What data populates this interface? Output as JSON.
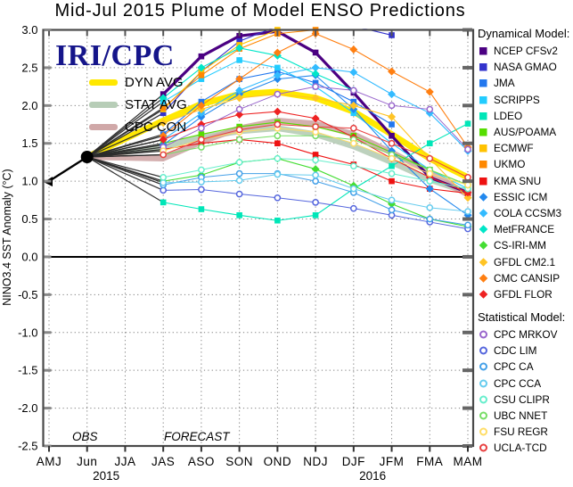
{
  "chart_data": {
    "type": "line",
    "title": "Mid-Jul 2015 Plume of Model ENSO Predictions",
    "ylabel": "NINO3.4 SST Anomaly (°C)",
    "x_categories": [
      "AMJ",
      "Jun",
      "JJA",
      "JAS",
      "ASO",
      "SON",
      "OND",
      "NDJ",
      "DJF",
      "JFM",
      "FMA",
      "MAM"
    ],
    "year_labels": [
      {
        "text": "2015",
        "between": [
          "Jun",
          "JJA"
        ]
      },
      {
        "text": "2016",
        "between": [
          "DJF",
          "JFM"
        ]
      }
    ],
    "ylim": [
      -2.5,
      3.0
    ],
    "ytick_step": 0.5,
    "grid": "dotted",
    "zero_line": true,
    "watermark": "IRI/CPC",
    "obs_label": "OBS",
    "forecast_label": "FORECAST",
    "observations": {
      "name": "OBS",
      "color": "#000000",
      "x": [
        "AMJ",
        "Jun"
      ],
      "values": [
        1.0,
        1.32
      ]
    },
    "forecast_start_category": "JAS",
    "fan_color": "#2a2a2a",
    "averages": [
      {
        "name": "DYN AVG",
        "color": "#FFE800",
        "values": [
          1.8,
          2.02,
          2.15,
          2.18,
          2.1,
          1.92,
          1.62,
          1.3,
          1.05
        ]
      },
      {
        "name": "STAT AVG",
        "color": "#B7CDB7",
        "values": [
          1.45,
          1.58,
          1.66,
          1.7,
          1.62,
          1.46,
          1.25,
          1.02,
          0.85
        ]
      },
      {
        "name": "CPC CON",
        "color": "#D0A8A8",
        "values": [
          1.3,
          1.52,
          1.7,
          1.8,
          1.76,
          1.62,
          1.38,
          1.12,
          0.82
        ]
      }
    ],
    "legend": {
      "dynamical_title": "Dynamical Model:",
      "statistical_title": "Statistical Model:"
    },
    "series": [
      {
        "name": "NCEP CFSv2",
        "group": "dynamical",
        "marker": "square",
        "color": "#4B0082",
        "lw": 3.2,
        "values": [
          2.15,
          2.65,
          2.92,
          2.98,
          2.7,
          2.17,
          1.6,
          1.05,
          0.85
        ]
      },
      {
        "name": "NASA GMAO",
        "group": "dynamical",
        "marker": "square",
        "color": "#3333CC",
        "lw": 1.1,
        "values": [
          1.9,
          2.45,
          2.85,
          3.05,
          3.1,
          3.05,
          2.93,
          null,
          null
        ]
      },
      {
        "name": "JMA",
        "group": "dynamical",
        "marker": "square",
        "color": "#2277EE",
        "lw": 1.1,
        "values": [
          1.62,
          2.05,
          2.35,
          2.45,
          2.3,
          2.05,
          1.75,
          null,
          null
        ]
      },
      {
        "name": "SCRIPPS",
        "group": "dynamical",
        "marker": "square",
        "color": "#22CCFF",
        "lw": 1.1,
        "values": [
          2.05,
          2.35,
          2.6,
          2.5,
          2.25,
          1.9,
          1.5,
          1.15,
          0.9
        ]
      },
      {
        "name": "LDEO",
        "group": "dynamical",
        "marker": "square",
        "color": "#00E6B8",
        "lw": 1.1,
        "values": [
          0.72,
          0.63,
          0.55,
          0.48,
          0.55,
          0.9,
          1.2,
          1.5,
          1.76
        ]
      },
      {
        "name": "AUS/POAMA",
        "group": "dynamical",
        "marker": "square",
        "color": "#55DD00",
        "lw": 1.1,
        "values": [
          1.5,
          1.62,
          1.72,
          1.78,
          1.72,
          1.6,
          1.38,
          1.15,
          0.95
        ]
      },
      {
        "name": "ECMWF",
        "group": "dynamical",
        "marker": "square",
        "color": "#FFC200",
        "lw": 1.1,
        "values": [
          1.95,
          2.45,
          2.8,
          3.0,
          null,
          null,
          null,
          null,
          null
        ]
      },
      {
        "name": "UKMO",
        "group": "dynamical",
        "marker": "square",
        "color": "#FF8800",
        "lw": 1.1,
        "values": [
          1.97,
          2.4,
          2.75,
          2.95,
          3.0,
          null,
          null,
          null,
          null
        ]
      },
      {
        "name": "KMA SNU",
        "group": "dynamical",
        "marker": "square",
        "color": "#EE1111",
        "lw": 1.1,
        "values": [
          1.42,
          1.5,
          1.55,
          1.5,
          1.35,
          1.22,
          1.0,
          0.9,
          0.84
        ]
      },
      {
        "name": "ESSIC ICM",
        "group": "dynamical",
        "marker": "diamond",
        "color": "#2288EE",
        "lw": 1.1,
        "values": [
          1.48,
          1.85,
          2.15,
          2.35,
          2.4,
          1.95,
          1.4,
          0.9,
          0.55
        ]
      },
      {
        "name": "COLA CCSM3",
        "group": "dynamical",
        "marker": "diamond",
        "color": "#33BBFF",
        "lw": 1.1,
        "values": [
          1.55,
          1.9,
          2.2,
          2.4,
          2.5,
          2.44,
          2.15,
          1.9,
          1.4
        ]
      },
      {
        "name": "MetFRANCE",
        "group": "dynamical",
        "marker": "diamond",
        "color": "#00E6C8",
        "lw": 1.1,
        "values": [
          2.1,
          2.5,
          2.76,
          2.66,
          2.42,
          2.2,
          null,
          null,
          null
        ]
      },
      {
        "name": "CS-IRI-MM",
        "group": "dynamical",
        "marker": "diamond",
        "color": "#44DD33",
        "lw": 1.1,
        "values": [
          1.0,
          1.08,
          1.25,
          1.3,
          1.16,
          0.94,
          0.7,
          0.5,
          0.4
        ]
      },
      {
        "name": "GFDL CM2.1",
        "group": "dynamical",
        "marker": "diamond",
        "color": "#FFC425",
        "lw": 1.1,
        "values": [
          1.77,
          1.95,
          2.1,
          2.15,
          2.1,
          2.0,
          1.85,
          1.3,
          0.78
        ]
      },
      {
        "name": "CMC CANSIP",
        "group": "dynamical",
        "marker": "diamond",
        "color": "#FF7F11",
        "lw": 1.1,
        "values": [
          1.6,
          2.0,
          2.35,
          2.7,
          2.95,
          2.74,
          2.45,
          2.18,
          1.45
        ]
      },
      {
        "name": "GFDL FLOR",
        "group": "dynamical",
        "marker": "diamond",
        "color": "#EE2222",
        "lw": 1.1,
        "values": [
          1.55,
          1.75,
          1.88,
          1.92,
          1.83,
          1.58,
          1.3,
          1.05,
          0.85
        ]
      },
      {
        "name": "CPC MRKOV",
        "group": "statistical",
        "marker": "circle",
        "color": "#9966CC",
        "lw": 1,
        "values": [
          1.45,
          1.7,
          1.95,
          2.15,
          2.25,
          2.2,
          2.0,
          1.95,
          1.42
        ]
      },
      {
        "name": "CDC LIM",
        "group": "statistical",
        "marker": "circle",
        "color": "#5566DD",
        "lw": 1,
        "values": [
          0.88,
          0.89,
          0.83,
          0.78,
          0.72,
          0.64,
          0.55,
          0.46,
          0.37
        ]
      },
      {
        "name": "CPC CA",
        "group": "statistical",
        "marker": "circle",
        "color": "#44A0E8",
        "lw": 1,
        "values": [
          0.95,
          1.05,
          1.1,
          1.1,
          1.0,
          0.85,
          0.62,
          0.5,
          0.42
        ]
      },
      {
        "name": "CPC CCA",
        "group": "statistical",
        "marker": "circle",
        "color": "#66CCEE",
        "lw": 1,
        "values": [
          0.98,
          0.99,
          1.01,
          1.09,
          1.08,
          0.9,
          0.75,
          0.65,
          0.6
        ]
      },
      {
        "name": "CSU CLIPR",
        "group": "statistical",
        "marker": "circle",
        "color": "#66EECC",
        "lw": 1,
        "values": [
          1.05,
          1.15,
          1.25,
          1.3,
          1.28,
          1.2,
          1.1,
          1.0,
          0.9
        ]
      },
      {
        "name": "UBC NNET",
        "group": "statistical",
        "marker": "circle",
        "color": "#77DD66",
        "lw": 1,
        "values": [
          1.35,
          1.45,
          1.55,
          1.6,
          1.6,
          1.55,
          1.35,
          1.15,
          0.95
        ]
      },
      {
        "name": "FSU REGR",
        "group": "statistical",
        "marker": "circle",
        "color": "#FFDD66",
        "lw": 1,
        "values": [
          1.4,
          1.55,
          1.65,
          1.7,
          1.65,
          1.5,
          1.3,
          1.1,
          0.95
        ]
      },
      {
        "name": "UCLA-TCD",
        "group": "statistical",
        "marker": "circle",
        "color": "#E84040",
        "lw": 1,
        "values": [
          1.35,
          1.55,
          1.68,
          1.75,
          1.72,
          1.7,
          1.5,
          1.3,
          1.05
        ]
      }
    ]
  }
}
